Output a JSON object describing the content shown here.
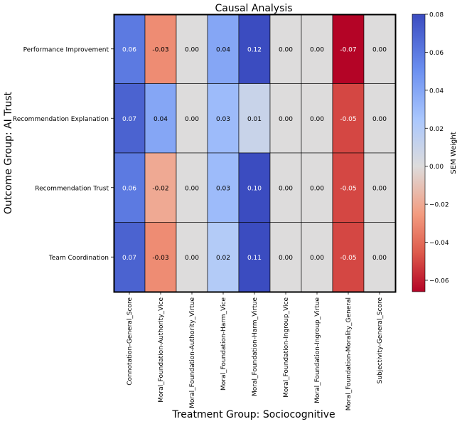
{
  "chart_data": {
    "type": "heatmap",
    "title": "Causal Analysis",
    "xlabel": "Treatment Group: Sociocognitive",
    "ylabel": "Outcome Group: AI Trust",
    "rows": [
      "Performance Improvement",
      "Recommendation Explanation",
      "Recommendation Trust",
      "Team Coordination"
    ],
    "columns": [
      "Connotation-General_Score",
      "Moral_Foundation-Authority_Vice",
      "Moral_Foundation-Authority_Virtue",
      "Moral_Foundation-Harm_Vice",
      "Moral_Foundation-Harm_Virtue",
      "Moral_Foundation-Ingroup_Vice",
      "Moral_Foundation-Ingroup_Virtue",
      "Moral_Foundation-Morality_General",
      "Subjectivity-General_Score"
    ],
    "values": [
      [
        0.06,
        -0.03,
        0.0,
        0.04,
        0.12,
        0.0,
        0.0,
        -0.07,
        0.0
      ],
      [
        0.07,
        0.04,
        0.0,
        0.03,
        0.01,
        0.0,
        0.0,
        -0.05,
        0.0
      ],
      [
        0.06,
        -0.02,
        0.0,
        0.03,
        0.1,
        0.0,
        0.0,
        -0.05,
        0.0
      ],
      [
        0.07,
        -0.03,
        0.0,
        0.02,
        0.11,
        0.0,
        0.0,
        -0.05,
        0.0
      ]
    ],
    "labels": [
      [
        "0.06",
        "-0.03",
        "0.00",
        "0.04",
        "0.12",
        "0.00",
        "0.00",
        "-0.07",
        "0.00"
      ],
      [
        "0.07",
        "0.04",
        "0.00",
        "0.03",
        "0.01",
        "0.00",
        "0.00",
        "-0.05",
        "0.00"
      ],
      [
        "0.06",
        "-0.02",
        "0.00",
        "0.03",
        "0.10",
        "0.00",
        "0.00",
        "-0.05",
        "0.00"
      ],
      [
        "0.07",
        "-0.03",
        "0.00",
        "0.02",
        "0.11",
        "0.00",
        "0.00",
        "-0.05",
        "0.00"
      ]
    ],
    "colorbar": {
      "label": "SEM Weight",
      "vmin": -0.066,
      "vmax": 0.08,
      "ticks": [
        0.08,
        0.06,
        0.04,
        0.02,
        0.0,
        -0.02,
        -0.04,
        -0.06
      ],
      "tick_labels": [
        "0.08",
        "0.06",
        "0.04",
        "0.02",
        "0.00",
        "−0.02",
        "−0.04",
        "−0.06"
      ],
      "colormap": "coolwarm"
    }
  }
}
